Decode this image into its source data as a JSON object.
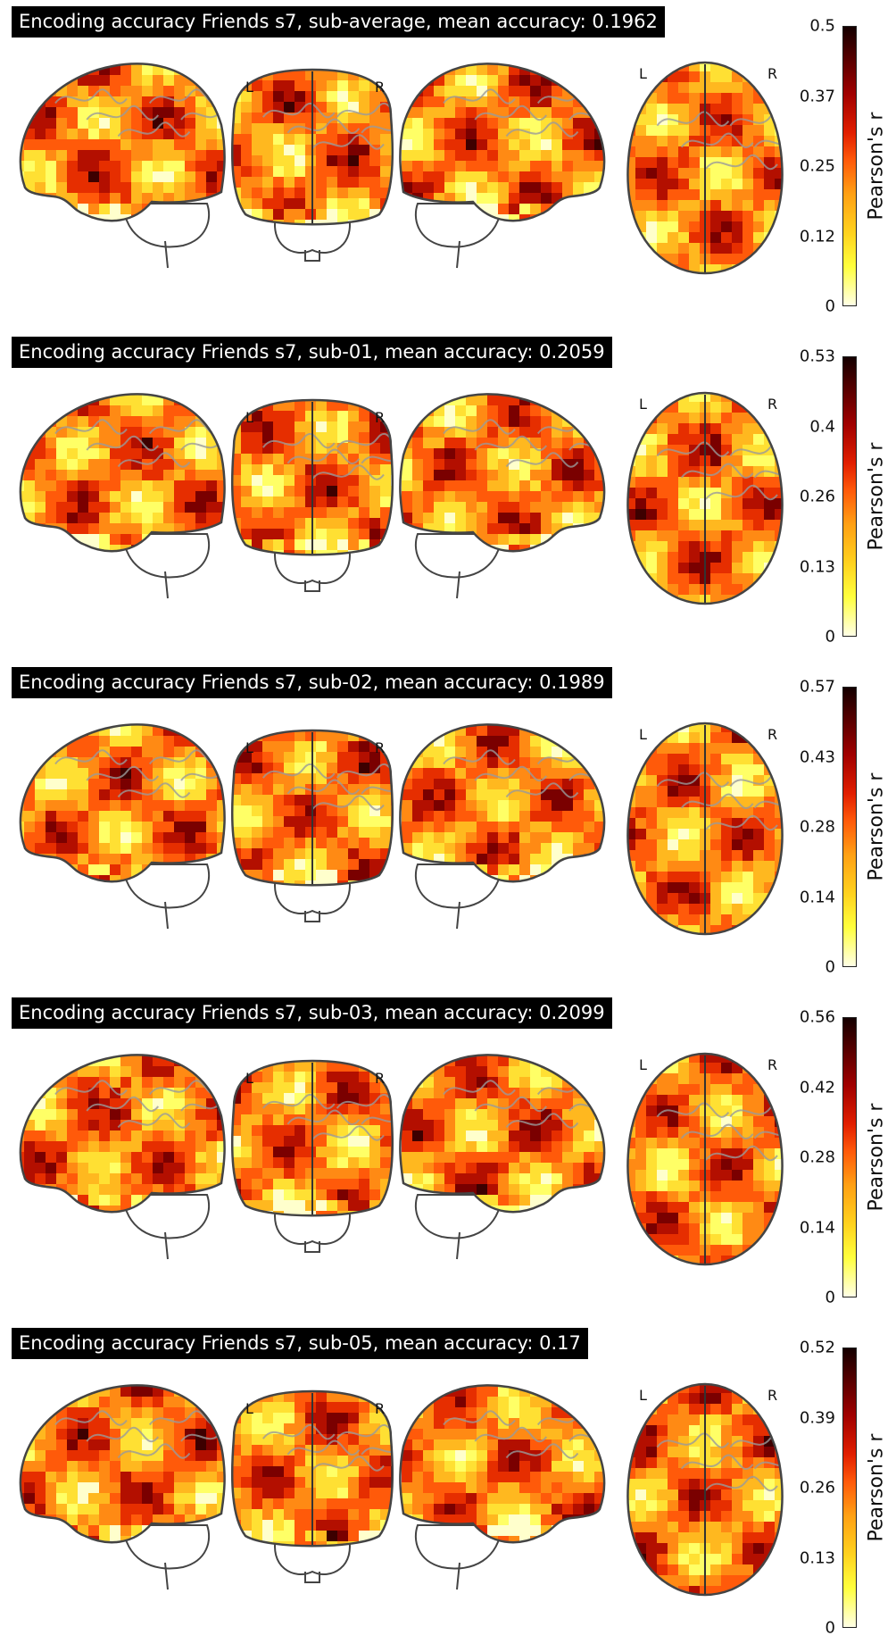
{
  "chart_data": [
    {
      "type": "heatmap",
      "title": "Encoding accuracy Friends s7, sub-average, mean accuracy: 0.1962",
      "colorbar": {
        "label": "Pearson's r",
        "ticks": [
          "0",
          "0.12",
          "0.25",
          "0.37",
          "0.5"
        ],
        "range": [
          0,
          0.5
        ]
      },
      "view_labels": {
        "left": "L",
        "right": "R"
      },
      "colormap": "cold-hot (yellow to dark red)"
    },
    {
      "type": "heatmap",
      "title": "Encoding accuracy Friends s7, sub-01, mean accuracy: 0.2059",
      "colorbar": {
        "label": "Pearson's r",
        "ticks": [
          "0",
          "0.13",
          "0.26",
          "0.4",
          "0.53"
        ],
        "range": [
          0,
          0.53
        ]
      },
      "view_labels": {
        "left": "L",
        "right": "R"
      },
      "colormap": "cold-hot (yellow to dark red)"
    },
    {
      "type": "heatmap",
      "title": "Encoding accuracy Friends s7, sub-02, mean accuracy: 0.1989",
      "colorbar": {
        "label": "Pearson's r",
        "ticks": [
          "0",
          "0.14",
          "0.28",
          "0.43",
          "0.57"
        ],
        "range": [
          0,
          0.57
        ]
      },
      "view_labels": {
        "left": "L",
        "right": "R"
      },
      "colormap": "cold-hot (yellow to dark red)"
    },
    {
      "type": "heatmap",
      "title": "Encoding accuracy Friends s7, sub-03, mean accuracy: 0.2099",
      "colorbar": {
        "label": "Pearson's r",
        "ticks": [
          "0",
          "0.14",
          "0.28",
          "0.42",
          "0.56"
        ],
        "range": [
          0,
          0.56
        ]
      },
      "view_labels": {
        "left": "L",
        "right": "R"
      },
      "colormap": "cold-hot (yellow to dark red)"
    },
    {
      "type": "heatmap",
      "title": "Encoding accuracy Friends s7, sub-05, mean accuracy: 0.17",
      "colorbar": {
        "label": "Pearson's r",
        "ticks": [
          "0",
          "0.13",
          "0.26",
          "0.39",
          "0.52"
        ],
        "range": [
          0,
          0.52
        ]
      },
      "view_labels": {
        "left": "L",
        "right": "R"
      },
      "colormap": "cold-hot (yellow to dark red)"
    }
  ]
}
